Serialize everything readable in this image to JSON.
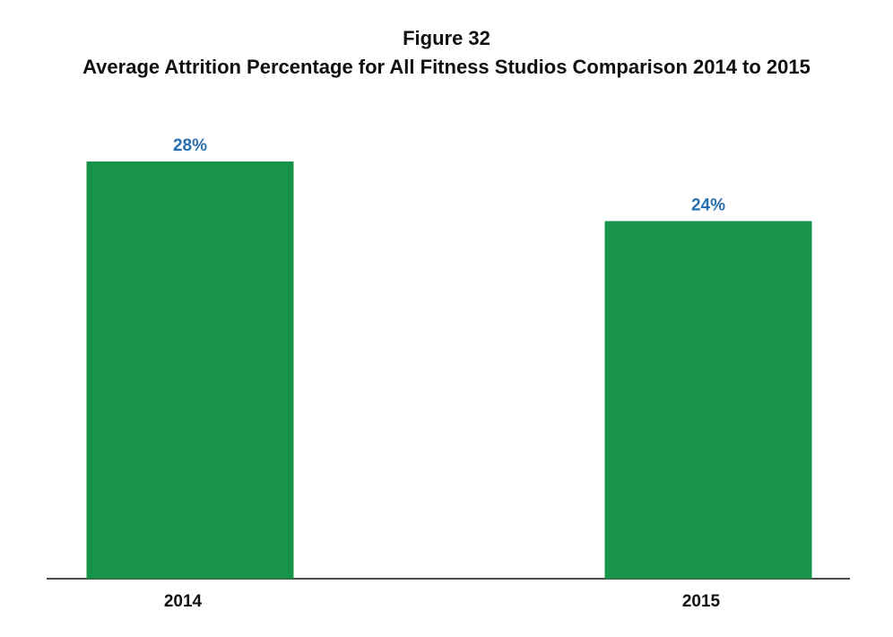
{
  "figure": {
    "label": "Figure 32",
    "title": "Average Attrition Percentage for All Fitness Studios Comparison 2014 to 2015"
  },
  "colors": {
    "bar": "#17934a",
    "value_label": "#2a6fb0",
    "axis": "#111111"
  },
  "chart_data": {
    "type": "bar",
    "categories": [
      "2014",
      "2015"
    ],
    "values": [
      28,
      24
    ],
    "value_labels": [
      "28%",
      "24%"
    ],
    "title": "Average Attrition Percentage for All Fitness Studios Comparison 2014 to 2015",
    "xlabel": "",
    "ylabel": "",
    "ylim": [
      0,
      28
    ],
    "grid": false,
    "legend": "none"
  }
}
